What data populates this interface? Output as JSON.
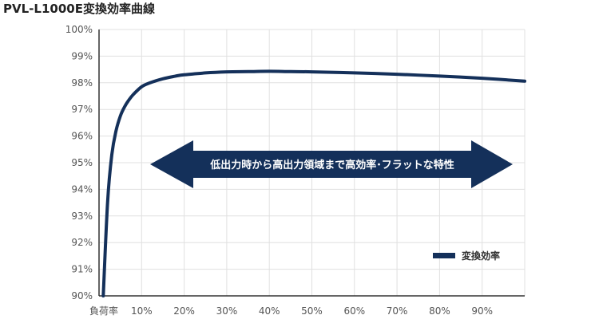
{
  "chart_data": {
    "type": "line",
    "title": "PVL-L1000E変換効率曲線",
    "xlabel": "負荷率",
    "ylabel": "",
    "xlim": [
      0,
      100
    ],
    "ylim": [
      90,
      100
    ],
    "x_ticks": [
      "10%",
      "20%",
      "30%",
      "40%",
      "50%",
      "60%",
      "70%",
      "80%",
      "90%"
    ],
    "x_tick_values": [
      10,
      20,
      30,
      40,
      50,
      60,
      70,
      80,
      90
    ],
    "y_ticks": [
      "90%",
      "91%",
      "92%",
      "93%",
      "94%",
      "95%",
      "96%",
      "97%",
      "98%",
      "99%",
      "100%"
    ],
    "y_tick_values": [
      90,
      91,
      92,
      93,
      94,
      95,
      96,
      97,
      98,
      99,
      100
    ],
    "grid": true,
    "legend_position": "bottom-right",
    "series": [
      {
        "name": "変換効率",
        "color": "#14305a",
        "x": [
          1,
          2,
          3,
          4,
          5,
          6,
          7,
          8,
          10,
          12,
          15,
          18,
          20,
          25,
          30,
          35,
          40,
          45,
          50,
          60,
          70,
          80,
          90,
          100
        ],
        "y": [
          90.0,
          93.5,
          95.3,
          96.2,
          96.75,
          97.1,
          97.35,
          97.55,
          97.85,
          98.0,
          98.15,
          98.25,
          98.3,
          98.37,
          98.41,
          98.42,
          98.43,
          98.42,
          98.41,
          98.37,
          98.32,
          98.25,
          98.17,
          98.06
        ]
      }
    ],
    "annotation": {
      "text": "低出力時から高出力領域まで高効率･フラットな特性",
      "color": "#14305a"
    }
  }
}
